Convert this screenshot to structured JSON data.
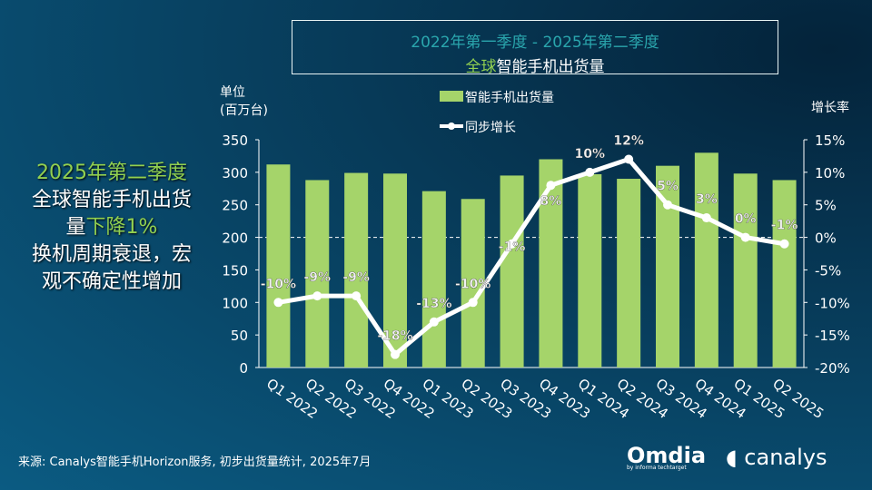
{
  "title": {
    "line1": "2022年第一季度 - 2025年第二季度",
    "line2_highlight": "全球",
    "line2_rest": "智能手机出货量"
  },
  "side_text": {
    "line1": "2025年第二季度",
    "line2": "全球智能手机出货",
    "line3a": "量",
    "line3b": "下降1%",
    "line4": "换机周期衰退，宏",
    "line5": "观不确定性增加"
  },
  "source": "来源: Canalys智能手机Horizon服务, 初步出货量统计, 2025年7月",
  "logos": {
    "omdia": "Omdia",
    "omdia_sub": "by informa techtarget",
    "canalys": "canalys"
  },
  "colors": {
    "bar": "#a5d46a",
    "line": "#ffffff",
    "title": "#2aa6ad",
    "highlight": "#92d050"
  },
  "chart_data": {
    "type": "bar+line",
    "categories": [
      "Q1 2022",
      "Q2 2022",
      "Q3 2022",
      "Q4 2022",
      "Q1 2023",
      "Q2 2023",
      "Q3 2023",
      "Q4 2023",
      "Q1 2024",
      "Q2 2024",
      "Q3 2024",
      "Q4 2024",
      "Q1 2025",
      "Q2 2025"
    ],
    "series": [
      {
        "name": "智能手机出货量",
        "type": "bar",
        "axis": "left",
        "values": [
          312,
          288,
          299,
          298,
          271,
          259,
          295,
          320,
          297,
          290,
          310,
          330,
          298,
          288
        ]
      },
      {
        "name": "同步增长",
        "type": "line",
        "axis": "right",
        "values": [
          -10,
          -9,
          -9,
          -18,
          -13,
          -10,
          -1,
          8,
          10,
          12,
          5,
          3,
          0,
          -1
        ],
        "labels": [
          "-10%",
          "-9%",
          "-9%",
          "-18%",
          "-13%",
          "-10%",
          "-1%",
          "8%",
          "10%",
          "12%",
          "5%",
          "3%",
          "0%",
          "-1%"
        ]
      }
    ],
    "ylabel": "单位\n(百万台)",
    "ylabel_lines": [
      "单位",
      "(百万台)"
    ],
    "y2label": "增长率",
    "ylim": [
      0,
      350
    ],
    "yticks": [
      "0",
      "50",
      "100",
      "150",
      "200",
      "250",
      "300",
      "350"
    ],
    "y2lim": [
      -20,
      15
    ],
    "y2ticks": [
      "-20%",
      "-15%",
      "-10%",
      "-5%",
      "0%",
      "5%",
      "10%",
      "15%"
    ],
    "grid": false,
    "zero_line_dashed": true,
    "legend": "top-center"
  }
}
